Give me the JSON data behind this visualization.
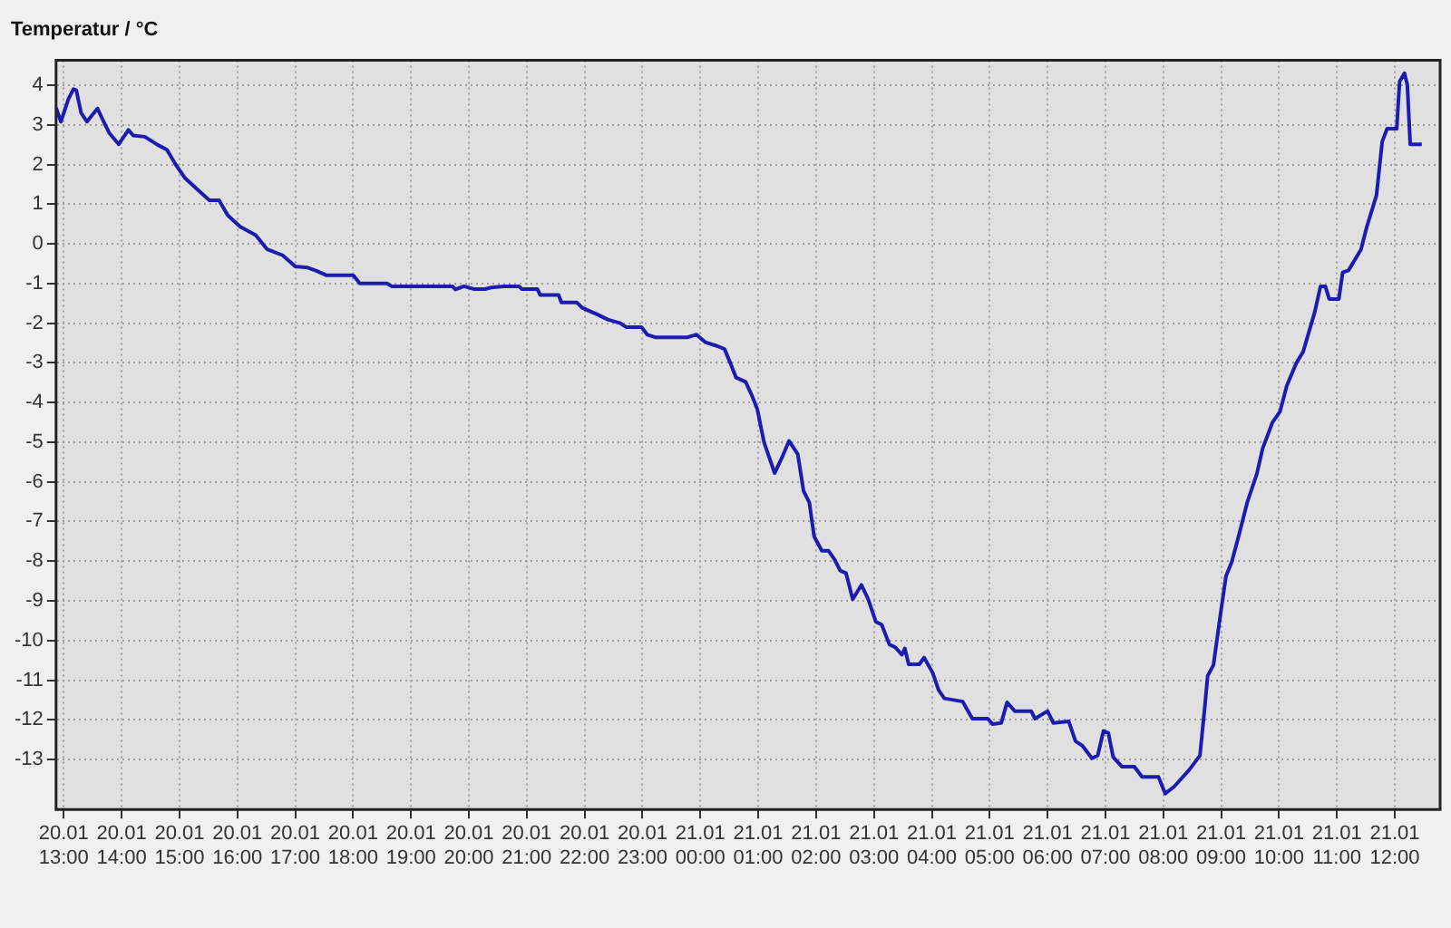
{
  "chart_data": {
    "type": "line",
    "title": "Temperatur / °C",
    "x": [
      "--01-20T12:52",
      "--01-20T12:57",
      "--01-20T13:05",
      "--01-20T13:10",
      "--01-20T13:13",
      "--01-20T13:18",
      "--01-20T13:24",
      "--01-20T13:35",
      "--01-20T13:40",
      "--01-20T13:47",
      "--01-20T13:57",
      "--01-20T14:07",
      "--01-20T14:12",
      "--01-20T14:24",
      "--01-20T14:37",
      "--01-20T14:47",
      "--01-20T14:56",
      "--01-20T15:06",
      "--01-20T15:19",
      "--01-20T15:31",
      "--01-20T15:41",
      "--01-20T15:50",
      "--01-20T16:03",
      "--01-20T16:19",
      "--01-20T16:31",
      "--01-20T16:47",
      "--01-20T17:00",
      "--01-20T17:13",
      "--01-20T17:22",
      "--01-20T17:32",
      "--01-20T18:00",
      "--01-20T18:07",
      "--01-20T18:35",
      "--01-20T18:40",
      "--01-20T19:43",
      "--01-20T19:46",
      "--01-20T19:55",
      "--01-20T20:05",
      "--01-20T20:17",
      "--01-20T20:23",
      "--01-20T20:36",
      "--01-20T20:52",
      "--01-20T20:55",
      "--01-20T21:11",
      "--01-20T21:14",
      "--01-20T21:33",
      "--01-20T21:36",
      "--01-20T21:52",
      "--01-20T21:58",
      "--01-20T22:14",
      "--01-20T22:24",
      "--01-20T22:37",
      "--01-20T22:43",
      "--01-20T22:59",
      "--01-20T23:05",
      "--01-20T23:14",
      "--01-20T23:46",
      "--01-20T23:56",
      "--01-21T00:05",
      "--01-21T00:18",
      "--01-21T00:25",
      "--01-21T00:31",
      "--01-21T00:37",
      "--01-21T00:47",
      "--01-21T00:53",
      "--01-21T00:59",
      "--01-21T01:06",
      "--01-21T01:17",
      "--01-21T01:25",
      "--01-21T01:32",
      "--01-21T01:41",
      "--01-21T01:47",
      "--01-21T01:53",
      "--01-21T01:58",
      "--01-21T02:06",
      "--01-21T02:13",
      "--01-21T02:19",
      "--01-21T02:25",
      "--01-21T02:31",
      "--01-21T02:38",
      "--01-21T02:47",
      "--01-21T02:54",
      "--01-21T03:02",
      "--01-21T03:08",
      "--01-21T03:16",
      "--01-21T03:22",
      "--01-21T03:29",
      "--01-21T03:32",
      "--01-21T03:36",
      "--01-21T03:47",
      "--01-21T03:52",
      "--01-21T04:01",
      "--01-21T04:07",
      "--01-21T04:13",
      "--01-21T04:32",
      "--01-21T04:42",
      "--01-21T04:58",
      "--01-21T05:03",
      "--01-21T05:12",
      "--01-21T05:18",
      "--01-21T05:26",
      "--01-21T05:43",
      "--01-21T05:47",
      "--01-21T06:00",
      "--01-21T06:06",
      "--01-21T06:22",
      "--01-21T06:29",
      "--01-21T06:36",
      "--01-21T06:46",
      "--01-21T06:52",
      "--01-21T06:58",
      "--01-21T07:03",
      "--01-21T07:08",
      "--01-21T07:17",
      "--01-21T07:30",
      "--01-21T07:38",
      "--01-21T07:55",
      "--01-21T08:02",
      "--01-21T08:11",
      "--01-21T08:27",
      "--01-21T08:38",
      "--01-21T08:43",
      "--01-21T08:46",
      "--01-21T08:52",
      "--01-21T08:59",
      "--01-21T09:05",
      "--01-21T09:11",
      "--01-21T09:18",
      "--01-21T09:27",
      "--01-21T09:37",
      "--01-21T09:43",
      "--01-21T09:53",
      "--01-21T10:01",
      "--01-21T10:08",
      "--01-21T10:18",
      "--01-21T10:25",
      "--01-21T10:37",
      "--01-21T10:43",
      "--01-21T10:48",
      "--01-21T10:52",
      "--01-21T11:02",
      "--01-21T11:06",
      "--01-21T11:12",
      "--01-21T11:25",
      "--01-21T11:31",
      "--01-21T11:41",
      "--01-21T11:47",
      "--01-21T11:52",
      "--01-21T12:02",
      "--01-21T12:05",
      "--01-21T12:10",
      "--01-21T12:13",
      "--01-21T12:16",
      "--01-21T12:28"
    ],
    "series": [
      {
        "color": "#1c1cb0",
        "values": [
          3.43,
          3.08,
          3.66,
          3.9,
          3.87,
          3.3,
          3.08,
          3.41,
          3.15,
          2.8,
          2.51,
          2.87,
          2.73,
          2.7,
          2.5,
          2.37,
          2.0,
          1.65,
          1.36,
          1.1,
          1.1,
          0.72,
          0.43,
          0.22,
          -0.14,
          -0.29,
          -0.57,
          -0.6,
          -0.68,
          -0.79,
          -0.79,
          -1.0,
          -1.0,
          -1.07,
          -1.07,
          -1.15,
          -1.07,
          -1.14,
          -1.14,
          -1.1,
          -1.07,
          -1.07,
          -1.14,
          -1.14,
          -1.29,
          -1.29,
          -1.48,
          -1.48,
          -1.62,
          -1.79,
          -1.91,
          -2.0,
          -2.1,
          -2.1,
          -2.29,
          -2.36,
          -2.36,
          -2.29,
          -2.48,
          -2.58,
          -2.65,
          -3.0,
          -3.37,
          -3.48,
          -3.8,
          -4.16,
          -5.0,
          -5.78,
          -5.37,
          -4.97,
          -5.3,
          -6.23,
          -6.52,
          -7.38,
          -7.74,
          -7.74,
          -7.95,
          -8.24,
          -8.3,
          -8.96,
          -8.6,
          -8.96,
          -9.53,
          -9.6,
          -10.1,
          -10.17,
          -10.36,
          -10.2,
          -10.6,
          -10.6,
          -10.43,
          -10.82,
          -11.25,
          -11.46,
          -11.54,
          -11.97,
          -11.97,
          -12.11,
          -12.08,
          -11.56,
          -11.78,
          -11.78,
          -11.97,
          -11.78,
          -12.08,
          -12.04,
          -12.54,
          -12.65,
          -12.97,
          -12.9,
          -12.28,
          -12.33,
          -12.94,
          -13.18,
          -13.18,
          -13.44,
          -13.44,
          -13.86,
          -13.69,
          -13.26,
          -12.9,
          -11.68,
          -10.89,
          -10.62,
          -9.39,
          -8.38,
          -8.02,
          -7.38,
          -6.52,
          -5.8,
          -5.16,
          -4.51,
          -4.23,
          -3.58,
          -3.0,
          -2.72,
          -1.72,
          -1.07,
          -1.07,
          -1.39,
          -1.39,
          -0.72,
          -0.67,
          -0.14,
          0.43,
          1.22,
          2.58,
          2.9,
          2.9,
          4.09,
          4.3,
          4.01,
          2.51,
          2.51
        ]
      }
    ],
    "xlim": [
      "--01-20T12:52",
      "--01-21T12:47"
    ],
    "ylim": [
      -14.26,
      4.63
    ],
    "xticks": [
      {
        "value": "--01-20T13:00",
        "label": "20.01\n13:00"
      },
      {
        "value": "--01-20T14:00",
        "label": "20.01\n14:00"
      },
      {
        "value": "--01-20T15:00",
        "label": "20.01\n15:00"
      },
      {
        "value": "--01-20T16:00",
        "label": "20.01\n16:00"
      },
      {
        "value": "--01-20T17:00",
        "label": "20.01\n17:00"
      },
      {
        "value": "--01-20T18:00",
        "label": "20.01\n18:00"
      },
      {
        "value": "--01-20T19:00",
        "label": "20.01\n19:00"
      },
      {
        "value": "--01-20T20:00",
        "label": "20.01\n20:00"
      },
      {
        "value": "--01-20T21:00",
        "label": "20.01\n21:00"
      },
      {
        "value": "--01-20T22:00",
        "label": "20.01\n22:00"
      },
      {
        "value": "--01-20T23:00",
        "label": "20.01\n23:00"
      },
      {
        "value": "--01-21T00:00",
        "label": "21.01\n00:00"
      },
      {
        "value": "--01-21T01:00",
        "label": "21.01\n01:00"
      },
      {
        "value": "--01-21T02:00",
        "label": "21.01\n02:00"
      },
      {
        "value": "--01-21T03:00",
        "label": "21.01\n03:00"
      },
      {
        "value": "--01-21T04:00",
        "label": "21.01\n04:00"
      },
      {
        "value": "--01-21T05:00",
        "label": "21.01\n05:00"
      },
      {
        "value": "--01-21T06:00",
        "label": "21.01\n06:00"
      },
      {
        "value": "--01-21T07:00",
        "label": "21.01\n07:00"
      },
      {
        "value": "--01-21T08:00",
        "label": "21.01\n08:00"
      },
      {
        "value": "--01-21T09:00",
        "label": "21.01\n09:00"
      },
      {
        "value": "--01-21T10:00",
        "label": "21.01\n10:00"
      },
      {
        "value": "--01-21T11:00",
        "label": "21.01\n11:00"
      },
      {
        "value": "--01-21T12:00",
        "label": "21.01\n12:00"
      }
    ],
    "yticks": [
      4,
      3,
      2,
      1,
      0,
      -1,
      -2,
      -3,
      -4,
      -5,
      -6,
      -7,
      -8,
      -9,
      -10,
      -11,
      -12,
      -13
    ],
    "grid": true,
    "legend": false,
    "marker": "none",
    "line_style": "solid"
  }
}
